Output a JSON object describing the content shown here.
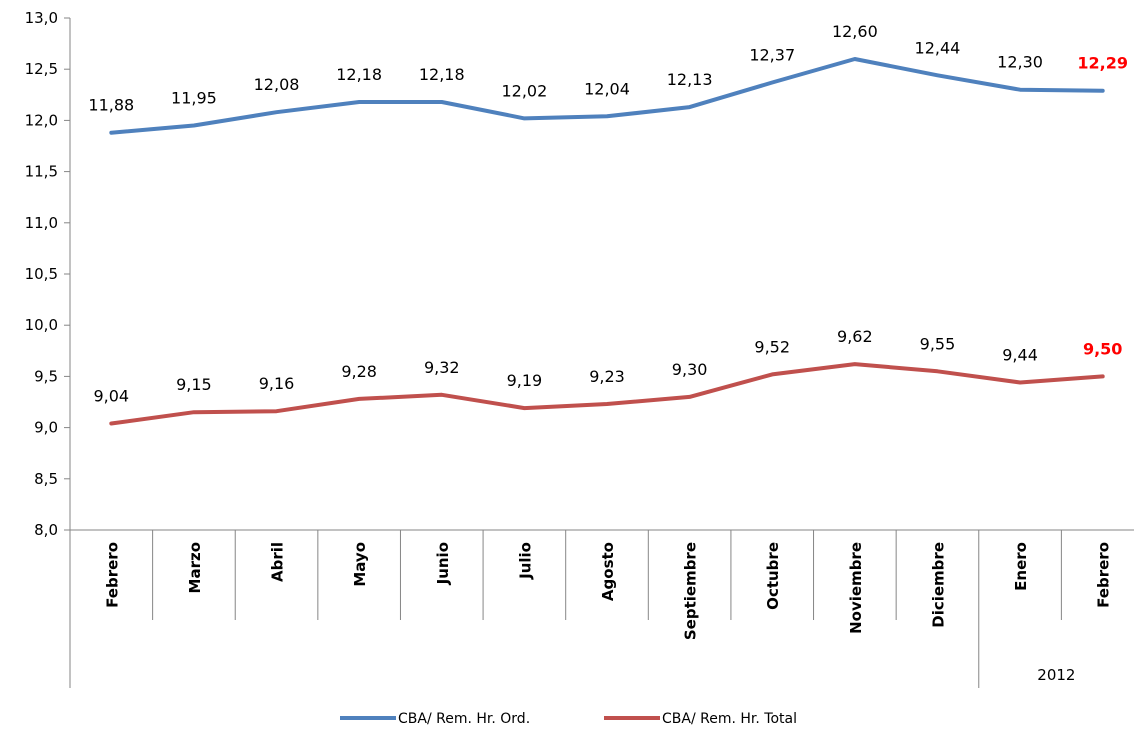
{
  "chart_data": {
    "type": "line",
    "categories": [
      "Febrero",
      "Marzo",
      "Abril",
      "Mayo",
      "Junio",
      "Julio",
      "Agosto",
      "Septiembre",
      "Octubre",
      "Noviembre",
      "Diciembre",
      "Enero",
      "Febrero"
    ],
    "group_label": "2012",
    "group_start_index": 11,
    "ylim": [
      8.0,
      13.0
    ],
    "yticks": [
      "8,0",
      "8,5",
      "9,0",
      "9,5",
      "10,0",
      "10,5",
      "11,0",
      "11,5",
      "12,0",
      "12,5",
      "13,0"
    ],
    "grid": false,
    "legend_position": "bottom",
    "series": [
      {
        "name": "CBA/ Rem. Hr. Ord.",
        "color": "#4f81bd",
        "values": [
          11.88,
          11.95,
          12.08,
          12.18,
          12.18,
          12.02,
          12.04,
          12.13,
          12.37,
          12.6,
          12.44,
          12.3,
          12.29
        ],
        "labels": [
          "11,88",
          "11,95",
          "12,08",
          "12,18",
          "12,18",
          "12,02",
          "12,04",
          "12,13",
          "12,37",
          "12,60",
          "12,44",
          "12,30",
          "12,29"
        ]
      },
      {
        "name": "CBA/ Rem. Hr. Total",
        "color": "#c0504d",
        "values": [
          9.04,
          9.15,
          9.16,
          9.28,
          9.32,
          9.19,
          9.23,
          9.3,
          9.52,
          9.62,
          9.55,
          9.44,
          9.5
        ],
        "labels": [
          "9,04",
          "9,15",
          "9,16",
          "9,28",
          "9,32",
          "9,19",
          "9,23",
          "9,30",
          "9,52",
          "9,62",
          "9,55",
          "9,44",
          "9,50"
        ]
      }
    ],
    "highlight_color": "#ff0000"
  }
}
